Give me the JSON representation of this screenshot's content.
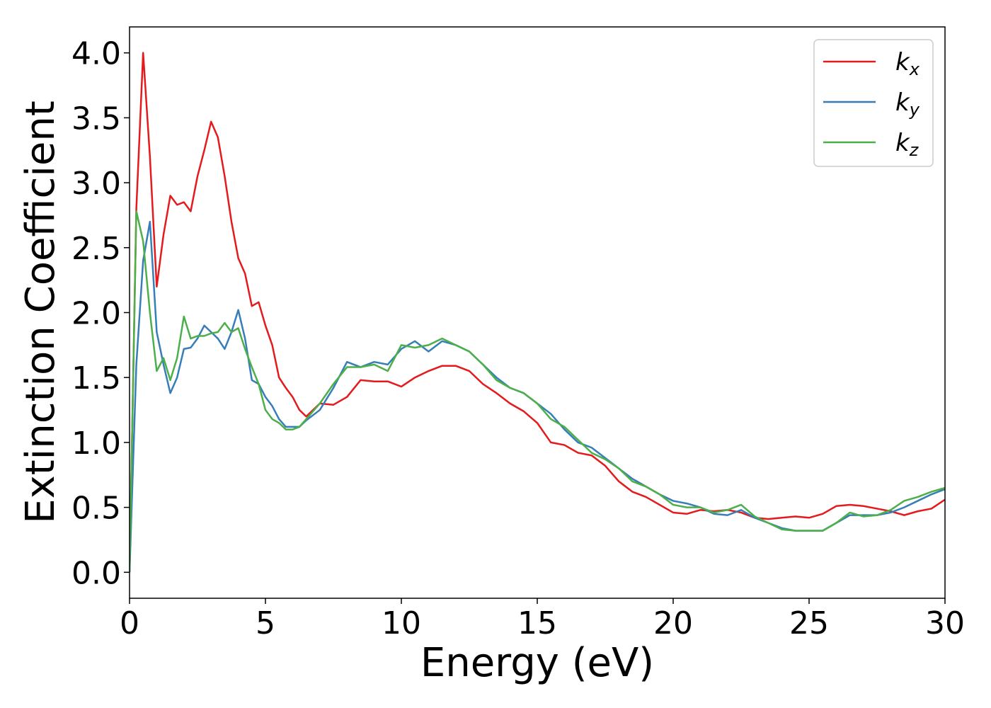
{
  "chart_data": {
    "type": "line",
    "xlabel": "Energy (eV)",
    "ylabel": "Extinction Coefficient",
    "xlim": [
      0,
      30
    ],
    "ylim": [
      -0.2,
      4.2
    ],
    "xticks": [
      0,
      5,
      10,
      15,
      20,
      25,
      30
    ],
    "yticks": [
      {
        "value": 0,
        "label": "0.0"
      },
      0.5,
      {
        "value": 1,
        "label": "1.0"
      },
      1.5,
      {
        "value": 2,
        "label": "2.0"
      },
      2.5,
      {
        "value": 3,
        "label": "3.0"
      },
      3.5,
      {
        "value": 4,
        "label": "4.0"
      }
    ],
    "legend": "upper right",
    "x": [
      0,
      0.25,
      0.5,
      0.75,
      1,
      1.25,
      1.5,
      1.75,
      2,
      2.25,
      2.5,
      2.75,
      3,
      3.25,
      3.5,
      3.75,
      4,
      4.25,
      4.5,
      4.75,
      5,
      5.25,
      5.5,
      5.75,
      6,
      6.25,
      6.5,
      7,
      7.5,
      8,
      8.5,
      9,
      9.5,
      10,
      10.5,
      11,
      11.5,
      12,
      12.5,
      13,
      13.5,
      14,
      14.5,
      15,
      15.5,
      16,
      16.5,
      17,
      17.5,
      18,
      18.5,
      19,
      19.5,
      20,
      20.5,
      21,
      21.5,
      22,
      22.5,
      23,
      23.5,
      24,
      24.5,
      25,
      25.5,
      26,
      26.5,
      27,
      27.5,
      28,
      28.5,
      29,
      29.5,
      30
    ],
    "series": [
      {
        "name": "kx",
        "color": "#e41a1c",
        "values": [
          0,
          2.8,
          4.0,
          3.2,
          2.2,
          2.6,
          2.9,
          2.83,
          2.85,
          2.78,
          3.05,
          3.25,
          3.47,
          3.35,
          3.05,
          2.7,
          2.42,
          2.3,
          2.05,
          2.08,
          1.9,
          1.75,
          1.5,
          1.42,
          1.35,
          1.25,
          1.2,
          1.3,
          1.29,
          1.35,
          1.48,
          1.47,
          1.47,
          1.43,
          1.5,
          1.55,
          1.59,
          1.59,
          1.55,
          1.45,
          1.38,
          1.3,
          1.24,
          1.15,
          1.0,
          0.98,
          0.92,
          0.9,
          0.82,
          0.7,
          0.62,
          0.58,
          0.52,
          0.46,
          0.45,
          0.48,
          0.47,
          0.48,
          0.46,
          0.42,
          0.41,
          0.42,
          0.43,
          0.42,
          0.45,
          0.51,
          0.52,
          0.51,
          0.49,
          0.47,
          0.44,
          0.47,
          0.49,
          0.56
        ]
      },
      {
        "name": "ky",
        "color": "#377eb8",
        "values": [
          0,
          1.6,
          2.4,
          2.7,
          1.85,
          1.6,
          1.38,
          1.5,
          1.72,
          1.73,
          1.8,
          1.9,
          1.85,
          1.8,
          1.72,
          1.85,
          2.02,
          1.8,
          1.48,
          1.45,
          1.35,
          1.28,
          1.18,
          1.12,
          1.12,
          1.12,
          1.17,
          1.25,
          1.42,
          1.62,
          1.58,
          1.62,
          1.6,
          1.72,
          1.78,
          1.7,
          1.78,
          1.75,
          1.7,
          1.6,
          1.5,
          1.42,
          1.38,
          1.3,
          1.22,
          1.1,
          1.0,
          0.96,
          0.88,
          0.8,
          0.72,
          0.66,
          0.6,
          0.55,
          0.53,
          0.5,
          0.45,
          0.44,
          0.48,
          0.42,
          0.38,
          0.34,
          0.32,
          0.32,
          0.32,
          0.38,
          0.44,
          0.44,
          0.44,
          0.46,
          0.5,
          0.55,
          0.6,
          0.64
        ]
      },
      {
        "name": "kz",
        "color": "#4daf4a",
        "values": [
          0,
          2.78,
          2.55,
          2.0,
          1.55,
          1.65,
          1.48,
          1.65,
          1.97,
          1.8,
          1.82,
          1.82,
          1.84,
          1.85,
          1.92,
          1.85,
          1.88,
          1.72,
          1.58,
          1.45,
          1.25,
          1.18,
          1.15,
          1.1,
          1.1,
          1.12,
          1.18,
          1.3,
          1.45,
          1.58,
          1.58,
          1.6,
          1.55,
          1.75,
          1.73,
          1.75,
          1.8,
          1.75,
          1.7,
          1.6,
          1.48,
          1.42,
          1.38,
          1.3,
          1.18,
          1.12,
          1.02,
          0.92,
          0.87,
          0.8,
          0.7,
          0.66,
          0.6,
          0.52,
          0.5,
          0.5,
          0.46,
          0.48,
          0.52,
          0.43,
          0.38,
          0.33,
          0.32,
          0.32,
          0.32,
          0.38,
          0.46,
          0.43,
          0.44,
          0.48,
          0.55,
          0.58,
          0.62,
          0.65
        ]
      }
    ]
  }
}
